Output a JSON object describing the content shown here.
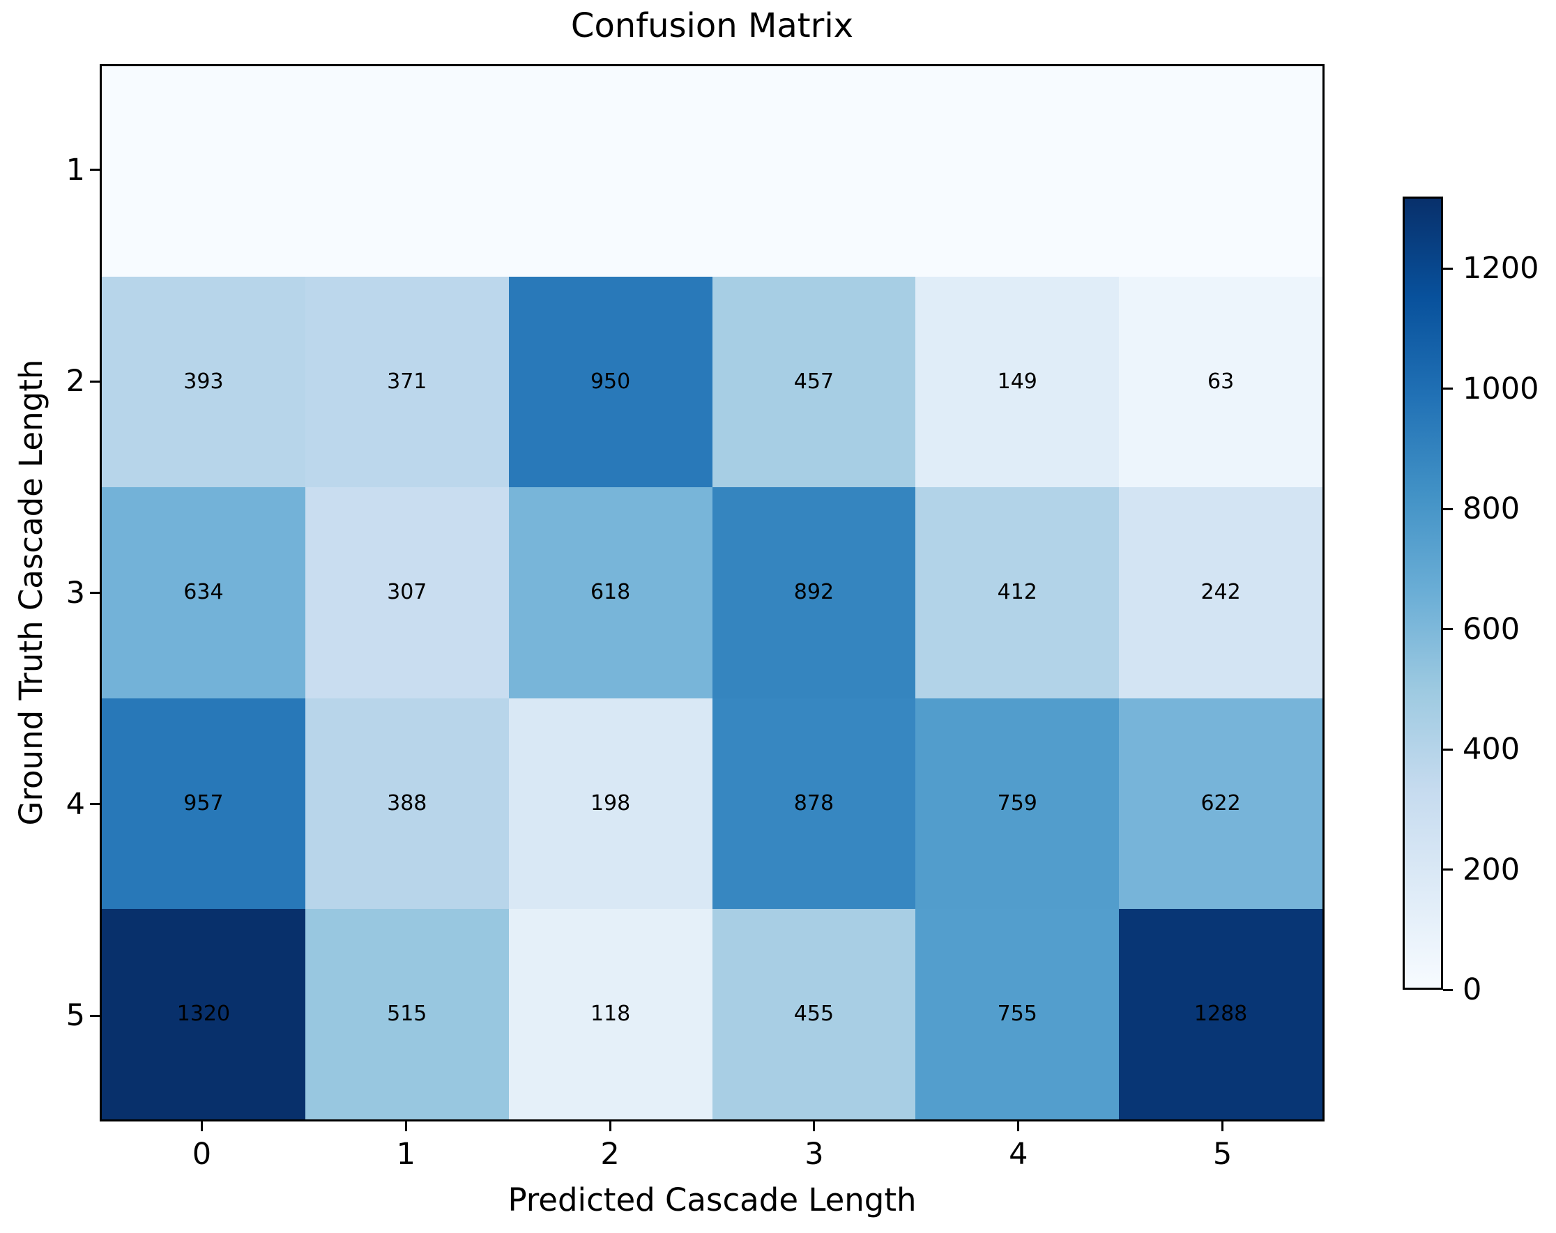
{
  "chart_data": {
    "type": "heatmap",
    "title": "Confusion Matrix",
    "xlabel": "Predicted Cascade Length",
    "ylabel": "Ground Truth Cascade Length",
    "x_ticklabels": [
      "0",
      "1",
      "2",
      "3",
      "4",
      "5"
    ],
    "y_ticklabels": [
      "1",
      "2",
      "3",
      "4",
      "5"
    ],
    "vmin": 0,
    "vmax": 1320,
    "grid": false,
    "colormap": "Blues",
    "colormap_stops": [
      "#f7fbff",
      "#deebf7",
      "#c6dbef",
      "#9ecae1",
      "#6baed6",
      "#4292c6",
      "#2171b5",
      "#08519c",
      "#08306b"
    ],
    "annotation_color": "#000000",
    "spine_color": "#000000",
    "background_color": "#ffffff",
    "rows": [
      {
        "label": "1",
        "values": [
          null,
          null,
          null,
          null,
          null,
          null
        ]
      },
      {
        "label": "2",
        "values": [
          393,
          371,
          950,
          457,
          149,
          63
        ]
      },
      {
        "label": "3",
        "values": [
          634,
          307,
          618,
          892,
          412,
          242
        ]
      },
      {
        "label": "4",
        "values": [
          957,
          388,
          198,
          878,
          759,
          622
        ]
      },
      {
        "label": "5",
        "values": [
          1320,
          515,
          118,
          455,
          755,
          1288
        ]
      }
    ],
    "colorbar": {
      "ticks": [
        0,
        200,
        400,
        600,
        800,
        1000,
        1200
      ],
      "position": "right"
    }
  }
}
